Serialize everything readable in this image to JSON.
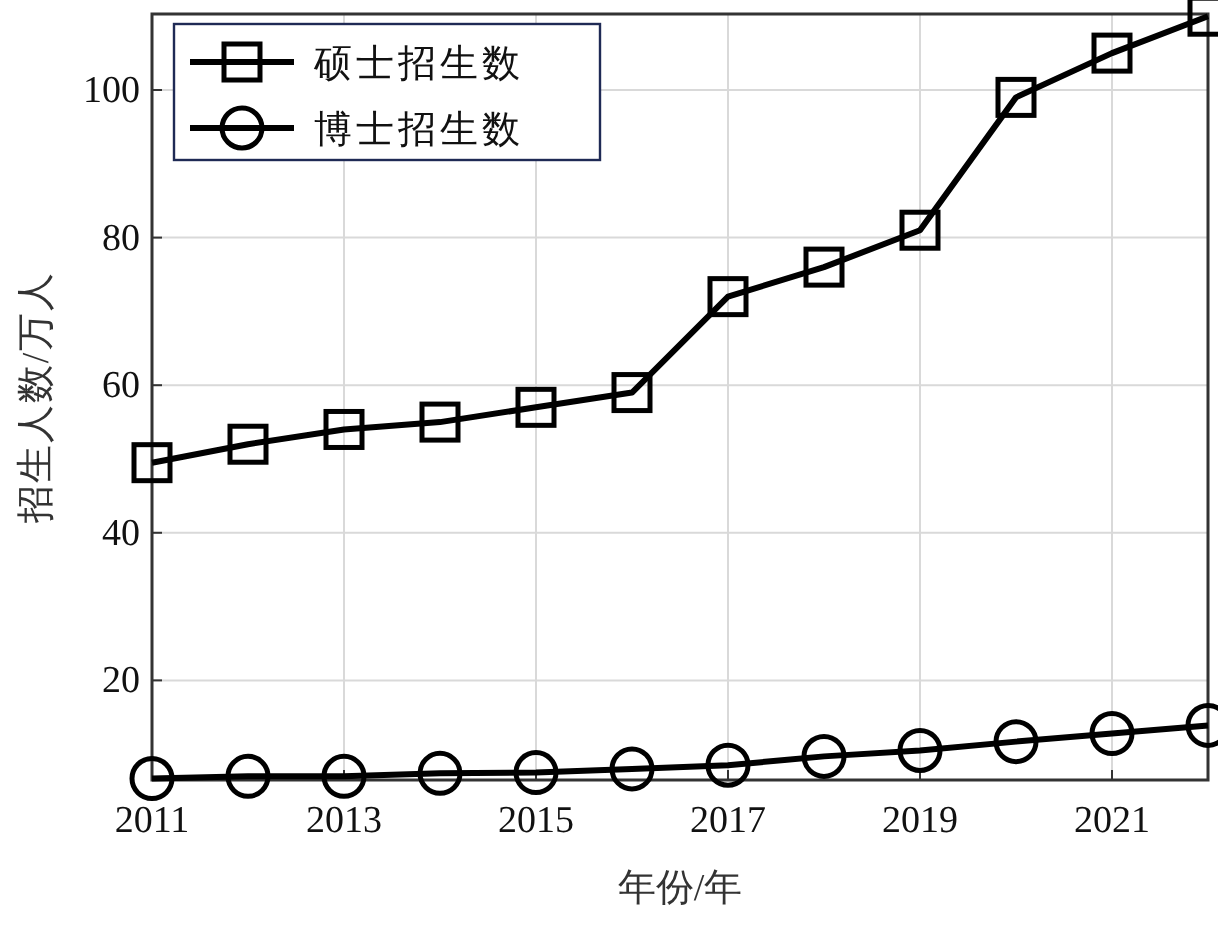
{
  "chart_data": {
    "type": "line",
    "xlabel": "年份/年",
    "ylabel": "招生人数/万人",
    "x": [
      2011,
      2012,
      2013,
      2014,
      2015,
      2016,
      2017,
      2018,
      2019,
      2020,
      2021,
      2022
    ],
    "series": [
      {
        "name": "硕士招生数",
        "color": "#000000",
        "marker": "square",
        "values": [
          49.5,
          52,
          54,
          55,
          57,
          59,
          72,
          76,
          81,
          99,
          105,
          110
        ]
      },
      {
        "name": "博士招生数",
        "color": "#000000",
        "marker": "circle",
        "values": [
          6.7,
          7,
          7,
          7.4,
          7.5,
          8,
          8.5,
          9.7,
          10.5,
          11.7,
          12.8,
          13.9
        ]
      }
    ],
    "xlim": [
      2011,
      2022
    ],
    "xticks": [
      2011,
      2013,
      2015,
      2017,
      2019,
      2021
    ],
    "ylim": [
      6.5,
      110.3
    ],
    "yticks": [
      20,
      40,
      60,
      80,
      100
    ],
    "grid": true,
    "legend": "top left",
    "line_style": "solid"
  }
}
